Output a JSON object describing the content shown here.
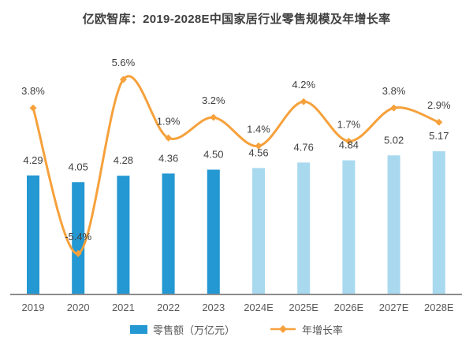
{
  "title": "亿欧智库：2019-2028E中国家居行业零售规模及年增长率",
  "legend": {
    "bar_label": "零售额（万亿元）",
    "line_label": "年增长率"
  },
  "colors": {
    "bar_actual": "#2398d2",
    "bar_forecast": "#a9d9ef",
    "line": "#f6a13c",
    "axis": "#8c8c8c",
    "value_label": "#404040",
    "tick_label": "#595959"
  },
  "chart_data": {
    "type": "bar",
    "subtype": "bar+line combo",
    "title": "亿欧智库：2019-2028E中国家居行业零售规模及年增长率",
    "categories": [
      "2019",
      "2020",
      "2021",
      "2022",
      "2023",
      "2024E",
      "2025E",
      "2026E",
      "2027E",
      "2028E"
    ],
    "series": [
      {
        "name": "零售额（万亿元）",
        "type": "bar",
        "values": [
          4.29,
          4.05,
          4.28,
          4.36,
          4.5,
          4.56,
          4.76,
          4.84,
          5.02,
          5.17
        ],
        "labels": [
          "4.29",
          "4.05",
          "4.28",
          "4.36",
          "4.50",
          "4.56",
          "4.76",
          "4.84",
          "5.02",
          "5.17"
        ],
        "forecast_from_index": 5
      },
      {
        "name": "年增长率",
        "type": "line",
        "values": [
          3.8,
          -5.4,
          5.6,
          1.9,
          3.2,
          1.4,
          4.2,
          1.7,
          3.8,
          2.9
        ],
        "labels": [
          "3.8%",
          "-5.4%",
          "5.6%",
          "1.9%",
          "3.2%",
          "1.4%",
          "4.2%",
          "1.7%",
          "3.8%",
          "2.9%"
        ]
      }
    ],
    "xlabel": "",
    "ylabel": "",
    "bar_axis_min": 0,
    "grid": false,
    "legend_position": "bottom",
    "data_labels_shown": true
  }
}
